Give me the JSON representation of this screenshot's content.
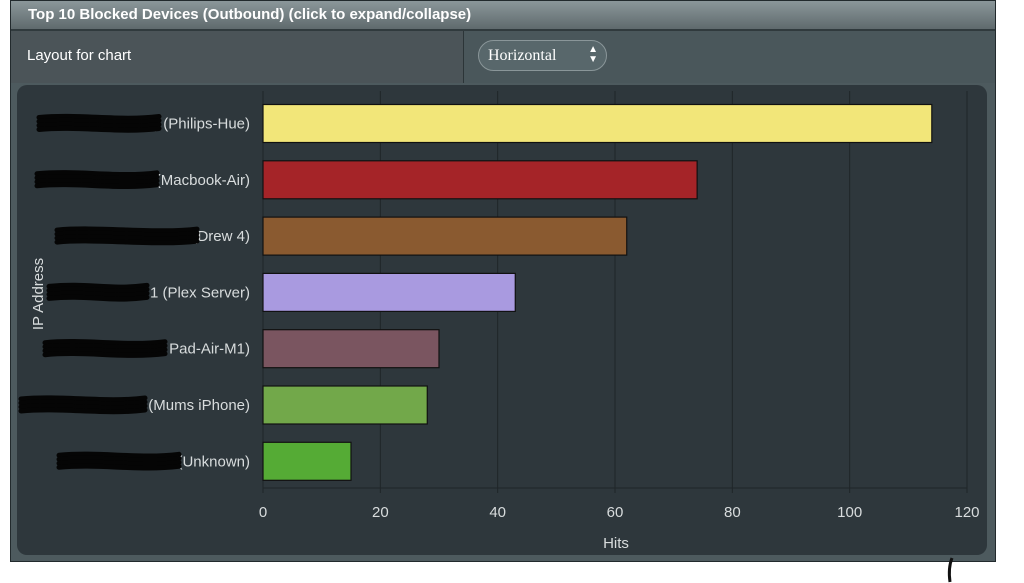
{
  "panel": {
    "title": "Top 10 Blocked Devices (Outbound) (click to expand/collapse)"
  },
  "layout": {
    "label": "Layout for chart",
    "selected": "Horizontal"
  },
  "chart_data": {
    "type": "bar",
    "orientation": "horizontal",
    "categories": [
      ") (Philips-Hue)",
      "3 (Macbook-Air)",
      "(Drew 4)",
      "1 (Plex Server)",
      "Pad-Air-M1)",
      "(Mums iPhone)",
      "9 (Unknown)"
    ],
    "values": [
      114,
      74,
      62,
      43,
      30,
      28,
      15
    ],
    "colors": [
      "#f2e679",
      "#a52428",
      "#8a5a30",
      "#a99ae0",
      "#7a5560",
      "#72a84a",
      "#55ab35"
    ],
    "xlabel": "Hits",
    "ylabel": "IP Address",
    "xlim": [
      0,
      120
    ],
    "xticks": [
      0,
      20,
      40,
      60,
      80,
      100,
      120
    ],
    "grid": true
  }
}
